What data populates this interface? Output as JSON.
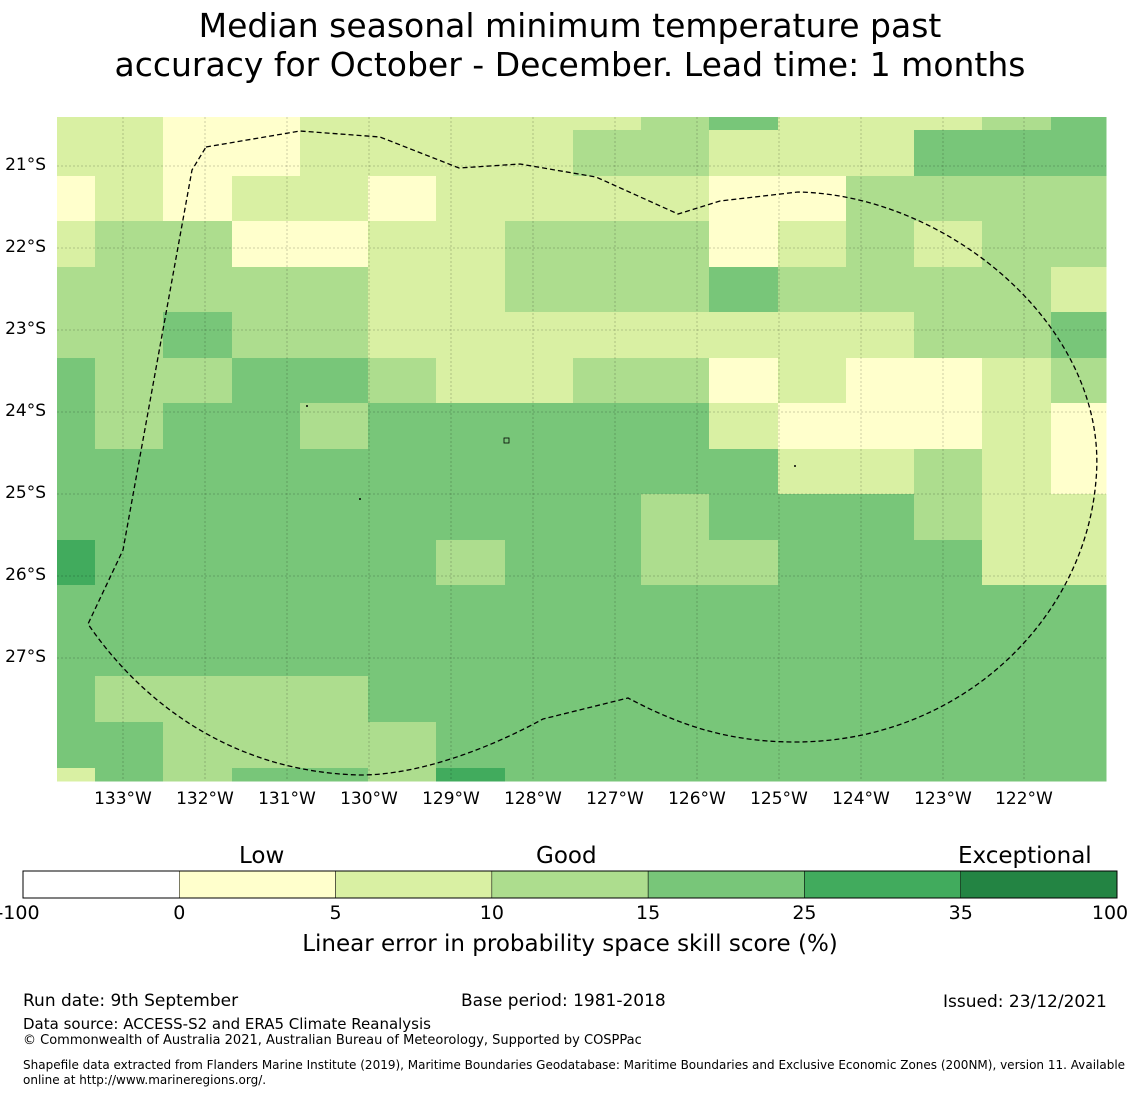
{
  "title_line1": "Median seasonal minimum temperature past",
  "title_line2": "accuracy for October - December. Lead time: 1 months",
  "map": {
    "lat_labels": [
      "21°S",
      "22°S",
      "23°S",
      "24°S",
      "25°S",
      "26°S",
      "27°S"
    ],
    "lon_labels": [
      "133°W",
      "132°W",
      "131°W",
      "130°W",
      "129°W",
      "128°W",
      "127°W",
      "126°W",
      "125°W",
      "124°W",
      "123°W",
      "122°W"
    ],
    "grid_rows_class": [
      [
        2,
        2,
        1,
        1,
        2,
        2,
        2,
        2,
        2,
        3,
        4,
        2,
        2,
        2,
        3,
        4
      ],
      [
        2,
        2,
        1,
        1,
        2,
        2,
        2,
        2,
        3,
        3,
        2,
        2,
        2,
        4,
        4,
        4
      ],
      [
        1,
        2,
        1,
        2,
        2,
        1,
        2,
        2,
        2,
        2,
        1,
        1,
        3,
        3,
        3,
        3
      ],
      [
        2,
        3,
        3,
        1,
        1,
        2,
        2,
        3,
        3,
        3,
        1,
        2,
        3,
        2,
        3,
        3
      ],
      [
        3,
        3,
        3,
        3,
        3,
        2,
        2,
        3,
        3,
        3,
        4,
        3,
        3,
        3,
        3,
        2
      ],
      [
        3,
        3,
        4,
        3,
        3,
        2,
        2,
        2,
        2,
        2,
        2,
        2,
        2,
        3,
        3,
        4
      ],
      [
        4,
        3,
        3,
        4,
        4,
        3,
        2,
        2,
        3,
        3,
        1,
        2,
        1,
        1,
        2,
        3
      ],
      [
        4,
        3,
        4,
        4,
        3,
        4,
        4,
        4,
        4,
        4,
        2,
        1,
        1,
        1,
        2,
        1
      ],
      [
        4,
        4,
        4,
        4,
        4,
        4,
        4,
        4,
        4,
        4,
        4,
        2,
        2,
        3,
        2,
        1
      ],
      [
        4,
        4,
        4,
        4,
        4,
        4,
        4,
        4,
        4,
        3,
        4,
        4,
        4,
        3,
        2,
        2
      ],
      [
        5,
        4,
        4,
        4,
        4,
        4,
        3,
        4,
        4,
        3,
        3,
        4,
        4,
        4,
        2,
        2
      ],
      [
        4,
        4,
        4,
        4,
        4,
        4,
        4,
        4,
        4,
        4,
        4,
        4,
        4,
        4,
        4,
        4
      ],
      [
        4,
        4,
        4,
        4,
        4,
        4,
        4,
        4,
        4,
        4,
        4,
        4,
        4,
        4,
        4,
        4
      ],
      [
        4,
        3,
        3,
        3,
        3,
        4,
        4,
        4,
        4,
        4,
        4,
        4,
        4,
        4,
        4,
        4
      ],
      [
        4,
        4,
        3,
        3,
        3,
        3,
        4,
        4,
        4,
        4,
        4,
        4,
        4,
        4,
        4,
        4
      ],
      [
        2,
        4,
        3,
        4,
        4,
        3,
        5,
        4,
        4,
        4,
        4,
        4,
        4,
        4,
        4,
        4
      ]
    ],
    "class_colors": [
      "#ffffff",
      "#ffffcc",
      "#d9f0a3",
      "#addd8e",
      "#78c679",
      "#41ab5d",
      "#238443"
    ],
    "boundary_style": "dashed"
  },
  "colorbar": {
    "categories": [
      "Low",
      "Good",
      "Exceptional"
    ],
    "ticks": [
      "-100",
      "0",
      "5",
      "10",
      "15",
      "25",
      "35",
      "100"
    ],
    "colors": [
      "#ffffff",
      "#ffffcc",
      "#d9f0a3",
      "#addd8e",
      "#78c679",
      "#41ab5d",
      "#238443"
    ],
    "label": "Linear error in probability space skill score (%)"
  },
  "footer": {
    "run_date": "Run date: 9th September",
    "base_period": "Base period: 1981-2018",
    "issued": "Issued: 23/12/2021",
    "data_source": "Data source: ACCESS-S2 and ERA5 Climate Reanalysis",
    "copyright": "© Commonwealth of Australia 2021, Australian Bureau of Meteorology, Supported by COSPPac",
    "shapefile": "Shapefile data extracted from Flanders Marine Institute (2019), Maritime Boundaries Geodatabase: Maritime Boundaries and Exclusive Economic Zones (200NM), version 11. Available online at http://www.marineregions.org/."
  }
}
